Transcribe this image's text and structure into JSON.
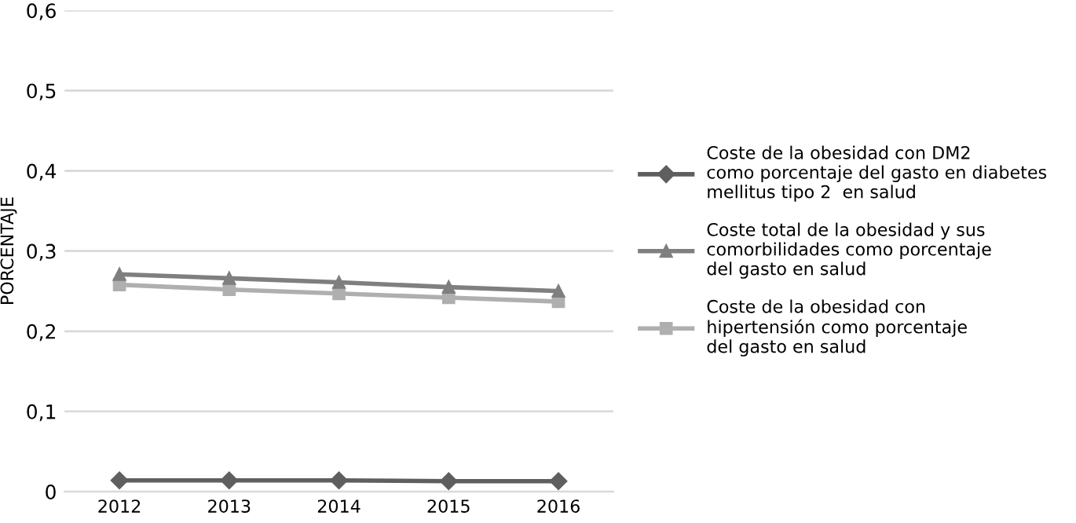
{
  "chart_data": {
    "type": "line",
    "ylabel": "PORCENTAJE",
    "categories": [
      "2012",
      "2013",
      "2014",
      "2015",
      "2016"
    ],
    "series": [
      {
        "name": "Coste de la obesidad con DM2\ncomo porcentaje del gasto en diabetes\nmellitus tipo 2  en salud",
        "color": "#5f5f5f",
        "marker": "diamond",
        "values": [
          0.014,
          0.014,
          0.014,
          0.013,
          0.013
        ]
      },
      {
        "name": "Coste total de la obesidad y sus\ncomorbilidades como porcentaje\ndel gasto en salud",
        "color": "#7f7f7f",
        "marker": "triangle",
        "values": [
          0.271,
          0.266,
          0.261,
          0.255,
          0.25
        ]
      },
      {
        "name": "Coste de la obesidad con\nhipertensión como porcentaje\ndel gasto en salud",
        "color": "#afafaf",
        "marker": "square",
        "values": [
          0.258,
          0.252,
          0.247,
          0.242,
          0.237
        ]
      }
    ],
    "ylim": [
      0,
      0.6
    ],
    "yticks": [
      {
        "value": 0,
        "label": "0"
      },
      {
        "value": 0.1,
        "label": "0,1"
      },
      {
        "value": 0.2,
        "label": "0,2"
      },
      {
        "value": 0.3,
        "label": "0,3"
      },
      {
        "value": 0.4,
        "label": "0,4"
      },
      {
        "value": 0.5,
        "label": "0,5"
      },
      {
        "value": 0.6,
        "label": "0,6"
      }
    ],
    "grid": "y",
    "legend": "right",
    "line_style": "solid"
  }
}
